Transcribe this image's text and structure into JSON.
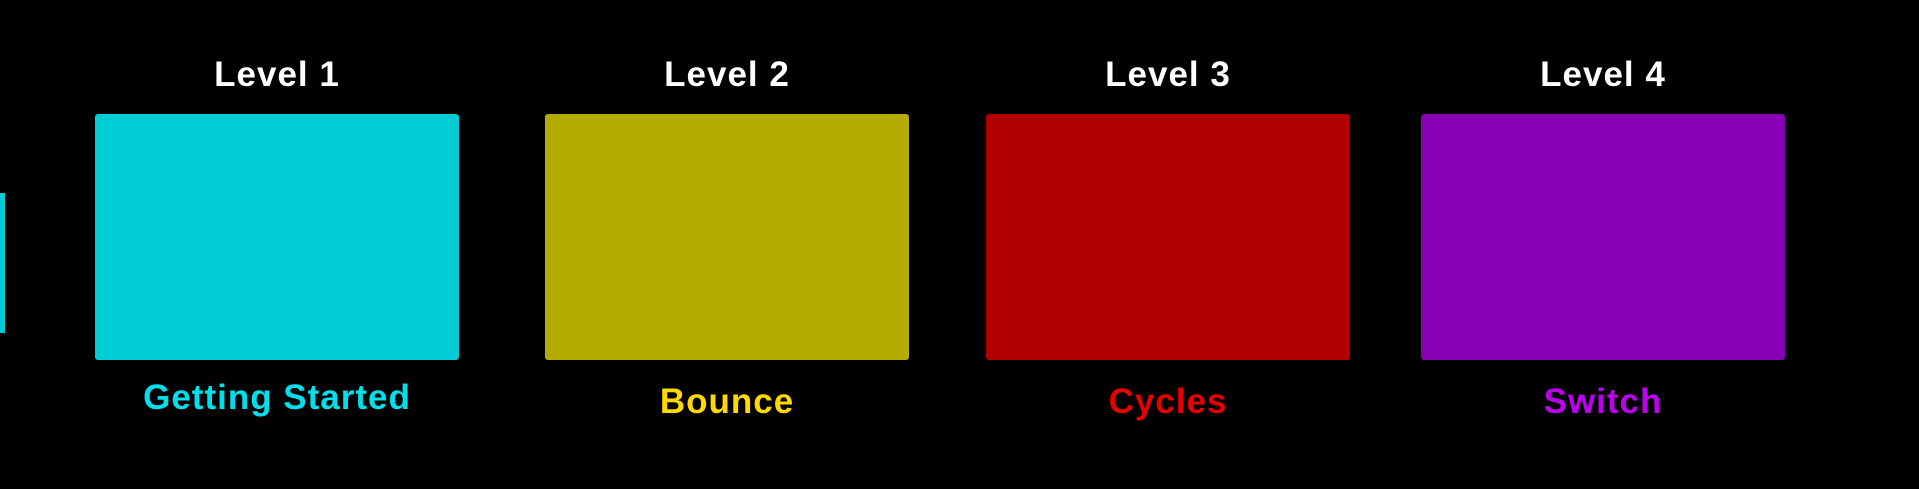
{
  "levels": [
    {
      "title": "Level 1",
      "name": "Getting Started"
    },
    {
      "title": "Level 2",
      "name": "Bounce"
    },
    {
      "title": "Level 3",
      "name": "Cycles"
    },
    {
      "title": "Level 4",
      "name": "Switch"
    }
  ]
}
